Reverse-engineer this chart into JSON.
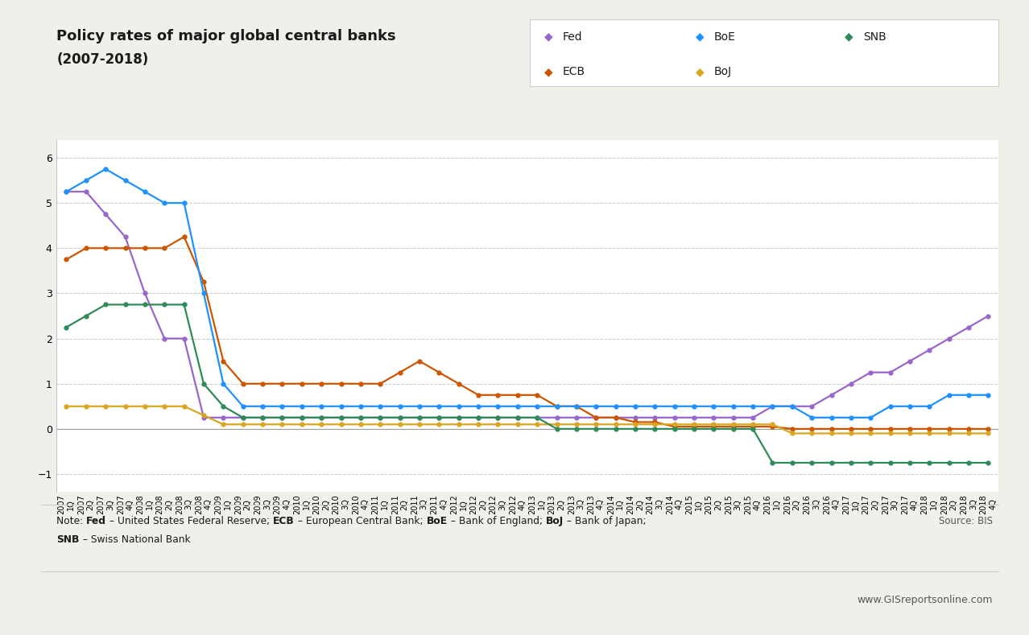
{
  "title_line1": "Policy rates of major global central banks",
  "title_line2": "(2007-2018)",
  "note_plain": "Note: Fed – United States Federal Reserve; ECB – European Central Bank; BoE – Bank of England; BoJ – Bank of Japan;",
  "note_line2": "SNB – Swiss National Bank",
  "source": "Source: BIS",
  "website": "www.GISreportsonline.com",
  "background_color": "#f0f0eb",
  "plot_background_color": "#ffffff",
  "ylim": [
    -1.4,
    6.4
  ],
  "yticks": [
    -1,
    0,
    1,
    2,
    3,
    4,
    5,
    6
  ],
  "quarters": [
    "1Q 2007",
    "2Q 2007",
    "3Q 2007",
    "4Q 2007",
    "1Q 2008",
    "2Q 2008",
    "3Q 2008",
    "4Q 2008",
    "1Q 2009",
    "2Q 2009",
    "3Q 2009",
    "4Q 2009",
    "1Q 2010",
    "2Q 2010",
    "3Q 2010",
    "4Q 2010",
    "1Q 2011",
    "2Q 2011",
    "3Q 2011",
    "4Q 2011",
    "1Q 2012",
    "2Q 2012",
    "3Q 2012",
    "4Q 2012",
    "1Q 2013",
    "2Q 2013",
    "3Q 2013",
    "4Q 2013",
    "1Q 2014",
    "2Q 2014",
    "3Q 2014",
    "4Q 2014",
    "1Q 2015",
    "2Q 2015",
    "3Q 2015",
    "4Q 2015",
    "1Q 2016",
    "2Q 2016",
    "3Q 2016",
    "4Q 2016",
    "1Q 2017",
    "2Q 2017",
    "3Q 2017",
    "4Q 2017",
    "1Q 2018",
    "2Q 2018",
    "3Q 2018",
    "4Q 2018"
  ],
  "Fed": [
    5.25,
    5.25,
    4.75,
    4.25,
    3.0,
    2.0,
    2.0,
    0.25,
    0.25,
    0.25,
    0.25,
    0.25,
    0.25,
    0.25,
    0.25,
    0.25,
    0.25,
    0.25,
    0.25,
    0.25,
    0.25,
    0.25,
    0.25,
    0.25,
    0.25,
    0.25,
    0.25,
    0.25,
    0.25,
    0.25,
    0.25,
    0.25,
    0.25,
    0.25,
    0.25,
    0.25,
    0.5,
    0.5,
    0.5,
    0.75,
    1.0,
    1.25,
    1.25,
    1.5,
    1.75,
    2.0,
    2.25,
    2.5
  ],
  "Fed_color": "#9966cc",
  "ECB": [
    3.75,
    4.0,
    4.0,
    4.0,
    4.0,
    4.0,
    4.25,
    3.25,
    1.5,
    1.0,
    1.0,
    1.0,
    1.0,
    1.0,
    1.0,
    1.0,
    1.0,
    1.25,
    1.5,
    1.25,
    1.0,
    0.75,
    0.75,
    0.75,
    0.75,
    0.5,
    0.5,
    0.25,
    0.25,
    0.15,
    0.15,
    0.05,
    0.05,
    0.05,
    0.05,
    0.05,
    0.05,
    0.0,
    0.0,
    0.0,
    0.0,
    0.0,
    0.0,
    0.0,
    0.0,
    0.0,
    0.0,
    0.0
  ],
  "ECB_color": "#cc5500",
  "BoE": [
    5.25,
    5.5,
    5.75,
    5.5,
    5.25,
    5.0,
    5.0,
    3.0,
    1.0,
    0.5,
    0.5,
    0.5,
    0.5,
    0.5,
    0.5,
    0.5,
    0.5,
    0.5,
    0.5,
    0.5,
    0.5,
    0.5,
    0.5,
    0.5,
    0.5,
    0.5,
    0.5,
    0.5,
    0.5,
    0.5,
    0.5,
    0.5,
    0.5,
    0.5,
    0.5,
    0.5,
    0.5,
    0.5,
    0.25,
    0.25,
    0.25,
    0.25,
    0.5,
    0.5,
    0.5,
    0.75,
    0.75,
    0.75
  ],
  "BoE_color": "#1e90ff",
  "BoJ": [
    0.5,
    0.5,
    0.5,
    0.5,
    0.5,
    0.5,
    0.5,
    0.3,
    0.1,
    0.1,
    0.1,
    0.1,
    0.1,
    0.1,
    0.1,
    0.1,
    0.1,
    0.1,
    0.1,
    0.1,
    0.1,
    0.1,
    0.1,
    0.1,
    0.1,
    0.1,
    0.1,
    0.1,
    0.1,
    0.1,
    0.1,
    0.1,
    0.1,
    0.1,
    0.1,
    0.1,
    0.1,
    -0.1,
    -0.1,
    -0.1,
    -0.1,
    -0.1,
    -0.1,
    -0.1,
    -0.1,
    -0.1,
    -0.1,
    -0.1
  ],
  "BoJ_color": "#daa520",
  "SNB": [
    2.25,
    2.5,
    2.75,
    2.75,
    2.75,
    2.75,
    2.75,
    1.0,
    0.5,
    0.25,
    0.25,
    0.25,
    0.25,
    0.25,
    0.25,
    0.25,
    0.25,
    0.25,
    0.25,
    0.25,
    0.25,
    0.25,
    0.25,
    0.25,
    0.25,
    0.0,
    0.0,
    0.0,
    0.0,
    0.0,
    0.0,
    0.0,
    0.0,
    0.0,
    0.0,
    0.0,
    -0.75,
    -0.75,
    -0.75,
    -0.75,
    -0.75,
    -0.75,
    -0.75,
    -0.75,
    -0.75,
    -0.75,
    -0.75,
    -0.75
  ],
  "SNB_color": "#2e8b57",
  "legend_entries": [
    {
      "label": "Fed",
      "color": "#9966cc"
    },
    {
      "label": "BoE",
      "color": "#1e90ff"
    },
    {
      "label": "SNB",
      "color": "#2e8b57"
    },
    {
      "label": "ECB",
      "color": "#cc5500"
    },
    {
      "label": "BoJ",
      "color": "#daa520"
    }
  ]
}
